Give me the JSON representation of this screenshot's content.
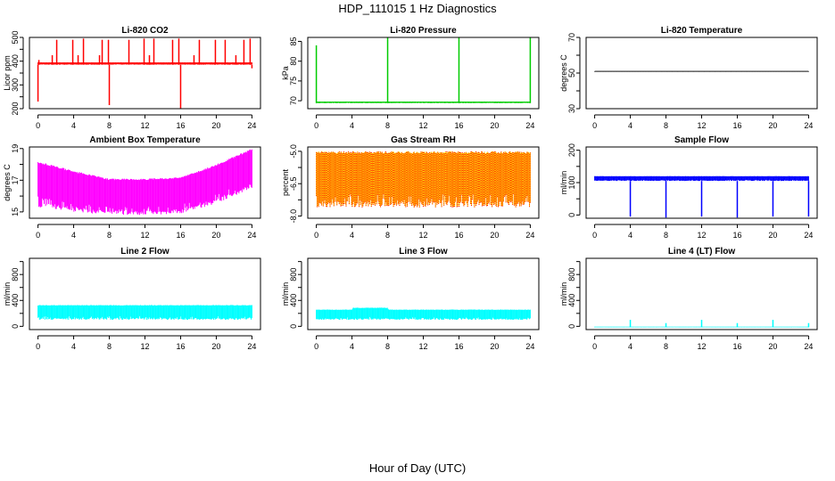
{
  "title": "HDP_111015  1 Hz Diagnostics",
  "xlabel": "Hour of Day (UTC)",
  "chart_data": [
    {
      "type": "line",
      "title": "Li-820 CO2",
      "ylabel": "Licor ppm",
      "color": "#ff0000",
      "xlim": [
        0,
        24
      ],
      "xticks": [
        0,
        4,
        8,
        12,
        16,
        20,
        24
      ],
      "ylim": [
        200,
        500
      ],
      "yticks": [
        200,
        300,
        400,
        500
      ],
      "yminor": [
        250,
        350,
        450
      ],
      "envelope": {
        "x": [
          0,
          24
        ],
        "low": [
          385,
          385
        ],
        "high": [
          395,
          395
        ]
      },
      "spikes": [
        [
          0,
          230
        ],
        [
          0.1,
          405
        ],
        [
          1.6,
          425
        ],
        [
          2.1,
          490
        ],
        [
          3.9,
          490
        ],
        [
          4.5,
          425
        ],
        [
          5.1,
          495
        ],
        [
          6.9,
          425
        ],
        [
          7.2,
          490
        ],
        [
          7.9,
          490
        ],
        [
          8.0,
          215
        ],
        [
          10.2,
          490
        ],
        [
          11.9,
          495
        ],
        [
          12.5,
          425
        ],
        [
          13.0,
          495
        ],
        [
          15.1,
          490
        ],
        [
          15.8,
          495
        ],
        [
          16.0,
          200
        ],
        [
          17.5,
          425
        ],
        [
          18.1,
          490
        ],
        [
          19.9,
          490
        ],
        [
          21.0,
          490
        ],
        [
          22.2,
          425
        ],
        [
          23.1,
          490
        ],
        [
          23.8,
          495
        ],
        [
          24,
          370
        ]
      ]
    },
    {
      "type": "line",
      "title": "Li-820 Pressure",
      "ylabel": "kPa",
      "color": "#00cc00",
      "xlim": [
        0,
        24
      ],
      "xticks": [
        0,
        4,
        8,
        12,
        16,
        20,
        24
      ],
      "ylim": [
        68,
        86
      ],
      "yticks": [
        70,
        75,
        80,
        85
      ],
      "yminor": [],
      "envelope": {
        "x": [
          0,
          24
        ],
        "low": [
          69.4,
          69.4
        ],
        "high": [
          69.8,
          69.8
        ]
      },
      "spikes": [
        [
          0,
          84
        ],
        [
          8,
          86
        ],
        [
          16,
          86
        ],
        [
          24,
          86
        ]
      ]
    },
    {
      "type": "line",
      "title": "Li-820 Temperature",
      "ylabel": "degrees C",
      "color": "#000000",
      "xlim": [
        0,
        24
      ],
      "xticks": [
        0,
        4,
        8,
        12,
        16,
        20,
        24
      ],
      "ylim": [
        30,
        70
      ],
      "yticks": [
        30,
        50,
        70
      ],
      "yminor": [
        40,
        60
      ],
      "envelope": {
        "x": [
          0,
          24
        ],
        "low": [
          51,
          51
        ],
        "high": [
          51,
          51
        ]
      },
      "spikes": []
    },
    {
      "type": "line",
      "title": "Ambient Box Temperature",
      "ylabel": "degrees C",
      "color": "#ff00ff",
      "xlim": [
        0,
        24
      ],
      "xticks": [
        0,
        4,
        8,
        12,
        16,
        20,
        24
      ],
      "ylim": [
        14.6,
        19.1
      ],
      "yticks": [
        15,
        17,
        19
      ],
      "yminor": [
        16,
        18
      ],
      "envelope": {
        "x": [
          0,
          4,
          8,
          12,
          16,
          20,
          24
        ],
        "low": [
          15.3,
          15.0,
          14.8,
          14.8,
          14.9,
          15.5,
          16.5
        ],
        "high": [
          18.2,
          17.6,
          17.1,
          17.1,
          17.2,
          18.0,
          19.0
        ]
      },
      "spikes": []
    },
    {
      "type": "line",
      "title": "Gas Stream RH",
      "ylabel": "percent",
      "color": "#ff0000",
      "color2": "#ffff00",
      "xlim": [
        0,
        24
      ],
      "xticks": [
        0,
        4,
        8,
        12,
        16,
        20,
        24
      ],
      "ylim": [
        -8.1,
        -4.8
      ],
      "yticks": [
        -5.0,
        -6.5,
        -8.0
      ],
      "yminor": [
        -5.75,
        -7.25
      ],
      "envelope": {
        "x": [
          0,
          24
        ],
        "low": [
          -7.6,
          -7.6
        ],
        "high": [
          -5.0,
          -5.0
        ]
      },
      "spikes": []
    },
    {
      "type": "line",
      "title": "Sample Flow",
      "ylabel": "ml/min",
      "color": "#0000ff",
      "xlim": [
        0,
        24
      ],
      "xticks": [
        0,
        4,
        8,
        12,
        16,
        20,
        24
      ],
      "ylim": [
        -10,
        210
      ],
      "yticks": [
        0,
        100,
        200
      ],
      "yminor": [
        50,
        150
      ],
      "envelope": {
        "x": [
          0,
          24
        ],
        "low": [
          105,
          105
        ],
        "high": [
          120,
          120
        ]
      },
      "spikes": [
        [
          4,
          -5
        ],
        [
          8,
          -8
        ],
        [
          12,
          -5
        ],
        [
          16,
          -8
        ],
        [
          20,
          -5
        ],
        [
          24,
          -5
        ]
      ]
    },
    {
      "type": "line",
      "title": "Line 2 Flow",
      "ylabel": "ml/min",
      "color": "#00ffff",
      "xlim": [
        0,
        24
      ],
      "xticks": [
        0,
        4,
        8,
        12,
        16,
        20,
        24
      ],
      "ylim": [
        -50,
        1050
      ],
      "yticks": [
        0,
        400,
        800
      ],
      "yminor": [
        200,
        600,
        1000
      ],
      "envelope": {
        "x": [
          0,
          24
        ],
        "low": [
          100,
          100
        ],
        "high": [
          330,
          330
        ]
      },
      "spikes": []
    },
    {
      "type": "line",
      "title": "Line 3 Flow",
      "ylabel": "ml/min",
      "color": "#00ffff",
      "xlim": [
        0,
        24
      ],
      "xticks": [
        0,
        4,
        8,
        12,
        16,
        20,
        24
      ],
      "ylim": [
        -50,
        1050
      ],
      "yticks": [
        0,
        400,
        800
      ],
      "yminor": [
        200,
        600,
        1000
      ],
      "envelope": {
        "x": [
          0,
          4,
          4.1,
          8,
          8.1,
          24
        ],
        "low": [
          100,
          100,
          100,
          100,
          100,
          100
        ],
        "high": [
          260,
          260,
          290,
          290,
          260,
          260
        ]
      },
      "spikes": []
    },
    {
      "type": "line",
      "title": "Line 4 (LT) Flow",
      "ylabel": "ml/min",
      "color": "#00ffff",
      "xlim": [
        0,
        24
      ],
      "xticks": [
        0,
        4,
        8,
        12,
        16,
        20,
        24
      ],
      "ylim": [
        -50,
        1050
      ],
      "yticks": [
        0,
        400,
        800
      ],
      "yminor": [
        200,
        600,
        1000
      ],
      "envelope": {
        "x": [
          0,
          24
        ],
        "low": [
          -15,
          -15
        ],
        "high": [
          -5,
          -5
        ]
      },
      "spikes": [
        [
          4,
          100
        ],
        [
          8,
          50
        ],
        [
          12,
          100
        ],
        [
          16,
          50
        ],
        [
          20,
          100
        ],
        [
          24,
          50
        ]
      ]
    }
  ]
}
